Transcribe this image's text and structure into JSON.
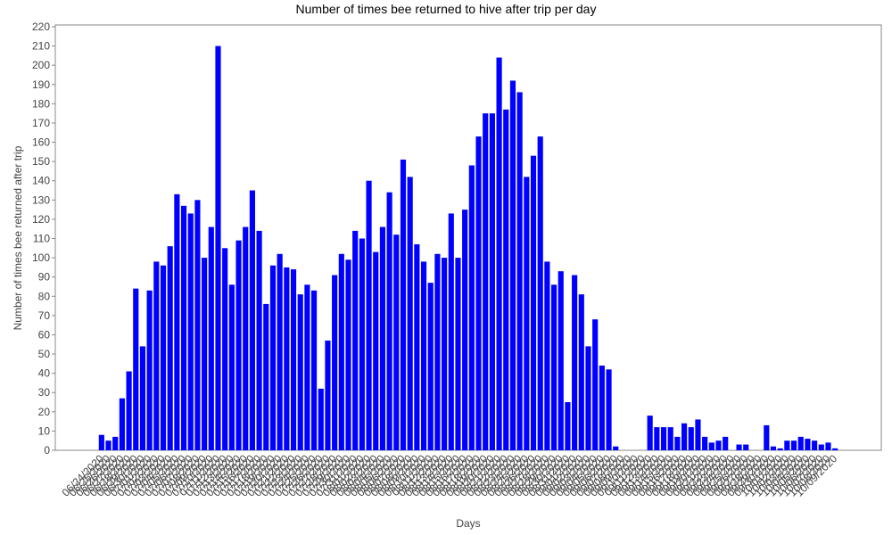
{
  "chart_data": {
    "type": "bar",
    "title": "Number of times bee returned to hive after trip per day",
    "x_label": "Days",
    "y_label": "Number of times bee returned after trip",
    "color": "#0000ff",
    "ylim": [
      0,
      220
    ],
    "yticks": [
      0,
      10,
      20,
      30,
      40,
      50,
      60,
      70,
      80,
      90,
      100,
      110,
      120,
      130,
      140,
      150,
      160,
      170,
      180,
      190,
      200,
      210,
      220
    ],
    "categories": [
      "06/24/2020",
      "06/25/2020",
      "06/26/2020",
      "06/27/2020",
      "06/28/2020",
      "06/29/2020",
      "06/30/2020",
      "07/01/2020",
      "07/02/2020",
      "07/03/2020",
      "07/04/2020",
      "07/05/2020",
      "07/06/2020",
      "07/07/2020",
      "07/08/2020",
      "07/09/2020",
      "07/10/2020",
      "07/11/2020",
      "07/12/2020",
      "07/13/2020",
      "07/14/2020",
      "07/15/2020",
      "07/16/2020",
      "07/17/2020",
      "07/18/2020",
      "07/19/2020",
      "07/20/2020",
      "07/21/2020",
      "07/22/2020",
      "07/23/2020",
      "07/24/2020",
      "07/25/2020",
      "07/26/2020",
      "07/27/2020",
      "07/28/2020",
      "07/29/2020",
      "07/30/2020",
      "07/31/2020",
      "08/01/2020",
      "08/02/2020",
      "08/03/2020",
      "08/04/2020",
      "08/05/2020",
      "08/06/2020",
      "08/07/2020",
      "08/08/2020",
      "08/09/2020",
      "08/10/2020",
      "08/11/2020",
      "08/12/2020",
      "08/13/2020",
      "08/14/2020",
      "08/15/2020",
      "08/16/2020",
      "08/17/2020",
      "08/18/2020",
      "08/19/2020",
      "08/20/2020",
      "08/21/2020",
      "08/22/2020",
      "08/23/2020",
      "08/24/2020",
      "08/25/2020",
      "08/26/2020",
      "08/27/2020",
      "08/28/2020",
      "08/29/2020",
      "08/30/2020",
      "08/31/2020",
      "09/01/2020",
      "09/02/2020",
      "09/03/2020",
      "09/04/2020",
      "09/05/2020",
      "09/06/2020",
      "09/07/2020",
      "09/08/2020",
      "09/09/2020",
      "09/10/2020",
      "09/11/2020",
      "09/12/2020",
      "09/13/2020",
      "09/14/2020",
      "09/15/2020",
      "09/16/2020",
      "09/17/2020",
      "09/18/2020",
      "09/19/2020",
      "09/20/2020",
      "09/21/2020",
      "09/22/2020",
      "09/23/2020",
      "09/24/2020",
      "09/25/2020",
      "09/26/2020",
      "09/27/2020",
      "09/28/2020",
      "09/29/2020",
      "09/30/2020",
      "10/01/2020",
      "10/02/2020",
      "10/03/2020",
      "10/04/2020",
      "10/05/2020",
      "10/06/2020",
      "10/07/2020",
      "10/08/2020",
      "10/09/2020"
    ],
    "values": [
      8,
      5,
      7,
      27,
      41,
      84,
      54,
      83,
      98,
      96,
      106,
      133,
      127,
      123,
      130,
      100,
      116,
      210,
      105,
      86,
      109,
      116,
      135,
      114,
      76,
      96,
      102,
      95,
      94,
      81,
      86,
      83,
      32,
      57,
      91,
      102,
      99,
      114,
      110,
      140,
      103,
      116,
      134,
      112,
      151,
      142,
      107,
      98,
      87,
      102,
      100,
      123,
      100,
      125,
      148,
      163,
      175,
      175,
      204,
      177,
      192,
      186,
      142,
      153,
      163,
      98,
      86,
      93,
      25,
      91,
      81,
      54,
      68,
      44,
      42,
      2,
      0,
      0,
      0,
      0,
      18,
      12,
      12,
      12,
      7,
      14,
      12,
      16,
      7,
      4,
      5,
      7,
      0,
      3,
      3,
      0,
      0,
      13,
      2,
      1,
      5,
      5,
      7,
      6,
      5,
      3,
      4,
      1
    ]
  }
}
